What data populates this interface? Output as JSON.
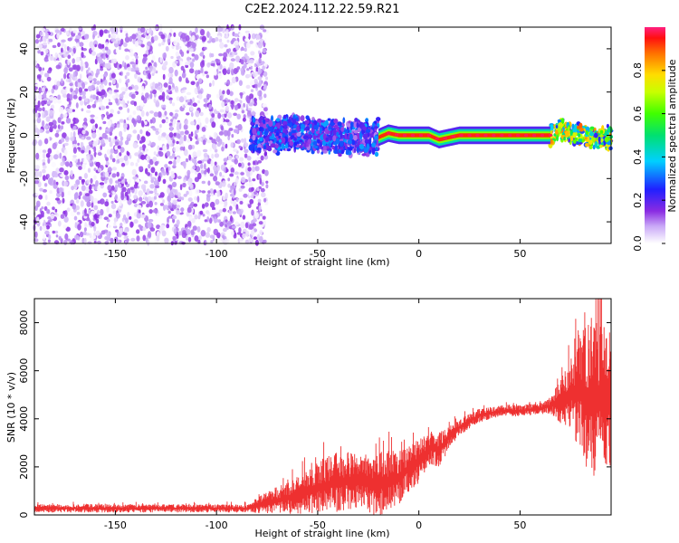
{
  "figure": {
    "title": "C2E2.2024.112.22.59.R21"
  },
  "chart_data": [
    {
      "type": "heatmap",
      "name": "spectrogram",
      "xlabel": "Height of straight line (km)",
      "ylabel": "Frequency (Hz)",
      "xlim": [
        -190,
        95
      ],
      "ylim": [
        -50,
        50
      ],
      "xticks": [
        -150,
        -100,
        -50,
        0,
        50
      ],
      "xtick_labels": [
        "-150",
        "-100",
        "-50",
        "0",
        "50"
      ],
      "yticks": [
        -40,
        -20,
        0,
        20,
        40
      ],
      "ytick_labels": [
        "-40",
        "-20",
        "0",
        "20",
        "40"
      ],
      "colorbar": {
        "label": "Normalized spectral amplitude",
        "range": [
          0,
          1
        ],
        "ticks": [
          0.0,
          0.2,
          0.4,
          0.6,
          0.8
        ],
        "tick_labels": [
          "0.0",
          "0.2",
          "0.4",
          "0.6",
          "0.8"
        ]
      },
      "regions": [
        {
          "x_range": [
            -190,
            -75
          ],
          "freq_range": [
            -50,
            50
          ],
          "amplitude_range": [
            0.0,
            0.15
          ],
          "pattern": "scattered noise"
        },
        {
          "x_range": [
            -83,
            -20
          ],
          "freq_range": [
            -8,
            10
          ],
          "amplitude_range": [
            0.1,
            0.35
          ],
          "pattern": "noisy band"
        },
        {
          "x_range": [
            -20,
            65
          ],
          "freq_range": [
            -2,
            2
          ],
          "amplitude_range": [
            0.9,
            1.0
          ],
          "pattern": "narrow tone near 0 Hz"
        },
        {
          "x_range": [
            65,
            95
          ],
          "freq_range": [
            -5,
            6
          ],
          "amplitude_range": [
            0.2,
            0.9
          ],
          "pattern": "broadening band"
        }
      ],
      "peak_track": {
        "x": [
          -83,
          -70,
          -60,
          -50,
          -40,
          -30,
          -25,
          -20,
          -15,
          -10,
          0,
          5,
          10,
          20,
          40,
          60,
          65,
          70,
          80,
          90
        ],
        "freq": [
          0,
          0,
          1,
          0,
          -1,
          -1,
          -1,
          -1,
          1,
          0,
          0,
          0,
          -2,
          0,
          0,
          0,
          0,
          3,
          0,
          -1
        ]
      }
    },
    {
      "type": "line",
      "name": "snr",
      "xlabel": "Height of straight line (km)",
      "ylabel": "SNR (10 * v/v)",
      "xlim": [
        -190,
        95
      ],
      "ylim": [
        0,
        9000
      ],
      "xticks": [
        -150,
        -100,
        -50,
        0,
        50
      ],
      "xtick_labels": [
        "-150",
        "-100",
        "-50",
        "0",
        "50"
      ],
      "yticks": [
        0,
        2000,
        4000,
        6000,
        8000
      ],
      "ytick_labels": [
        "0",
        "2000",
        "4000",
        "6000",
        "8000"
      ],
      "color": "#ee3030",
      "envelope": {
        "x": [
          -190,
          -150,
          -100,
          -85,
          -75,
          -60,
          -50,
          -40,
          -30,
          -20,
          -10,
          -5,
          0,
          5,
          10,
          15,
          20,
          30,
          40,
          50,
          60,
          65,
          70,
          75,
          80,
          85,
          90,
          95
        ],
        "mean": [
          250,
          250,
          250,
          250,
          450,
          700,
          1000,
          1200,
          1300,
          1100,
          1400,
          1800,
          2100,
          2700,
          2600,
          3200,
          3600,
          4100,
          4300,
          4300,
          4400,
          4500,
          4600,
          4800,
          4800,
          4300,
          4500,
          4200
        ],
        "spread": [
          150,
          150,
          150,
          150,
          400,
          700,
          900,
          1100,
          1000,
          1200,
          1000,
          900,
          800,
          600,
          700,
          400,
          300,
          250,
          200,
          200,
          200,
          300,
          800,
          1300,
          2200,
          2800,
          3000,
          2500
        ]
      }
    }
  ]
}
